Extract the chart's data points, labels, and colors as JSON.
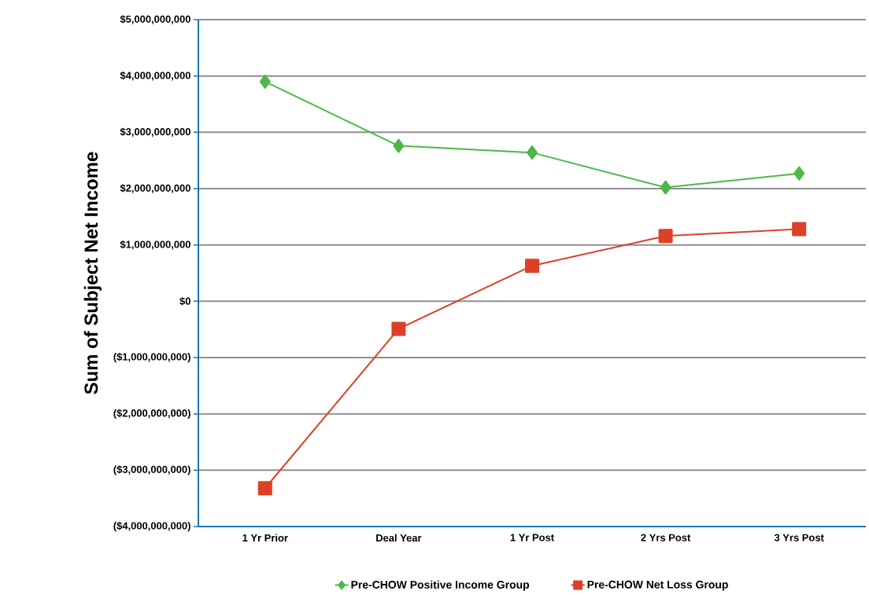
{
  "chart_data": {
    "type": "line",
    "ylabel": "Sum of Subject Net Income",
    "categories": [
      "1 Yr Prior",
      "Deal Year",
      "1 Yr Post",
      "2 Yrs Post",
      "3 Yrs Post"
    ],
    "series": [
      {
        "name": "Pre-CHOW Positive Income Group",
        "color": "#4db848",
        "marker": "diamond",
        "values": [
          3900000000,
          2760000000,
          2640000000,
          2020000000,
          2270000000
        ]
      },
      {
        "name": "Pre-CHOW Net Loss Group",
        "color": "#dd4027",
        "marker": "square",
        "values": [
          -3320000000,
          -490000000,
          630000000,
          1160000000,
          1280000000
        ]
      }
    ],
    "ylim": [
      -4000000000,
      5000000000
    ],
    "yticks": [
      {
        "value": -4000000000,
        "label": "($4,000,000,000)"
      },
      {
        "value": -3000000000,
        "label": "($3,000,000,000)"
      },
      {
        "value": -2000000000,
        "label": "($2,000,000,000)"
      },
      {
        "value": -1000000000,
        "label": "($1,000,000,000)"
      },
      {
        "value": 0,
        "label": "$0"
      },
      {
        "value": 1000000000,
        "label": "$1,000,000,000"
      },
      {
        "value": 2000000000,
        "label": "$2,000,000,000"
      },
      {
        "value": 3000000000,
        "label": "$3,000,000,000"
      },
      {
        "value": 4000000000,
        "label": "$4,000,000,000"
      },
      {
        "value": 5000000000,
        "label": "$5,000,000,000"
      }
    ],
    "grid": "y",
    "legend": "bottom",
    "line_style": "solid"
  }
}
